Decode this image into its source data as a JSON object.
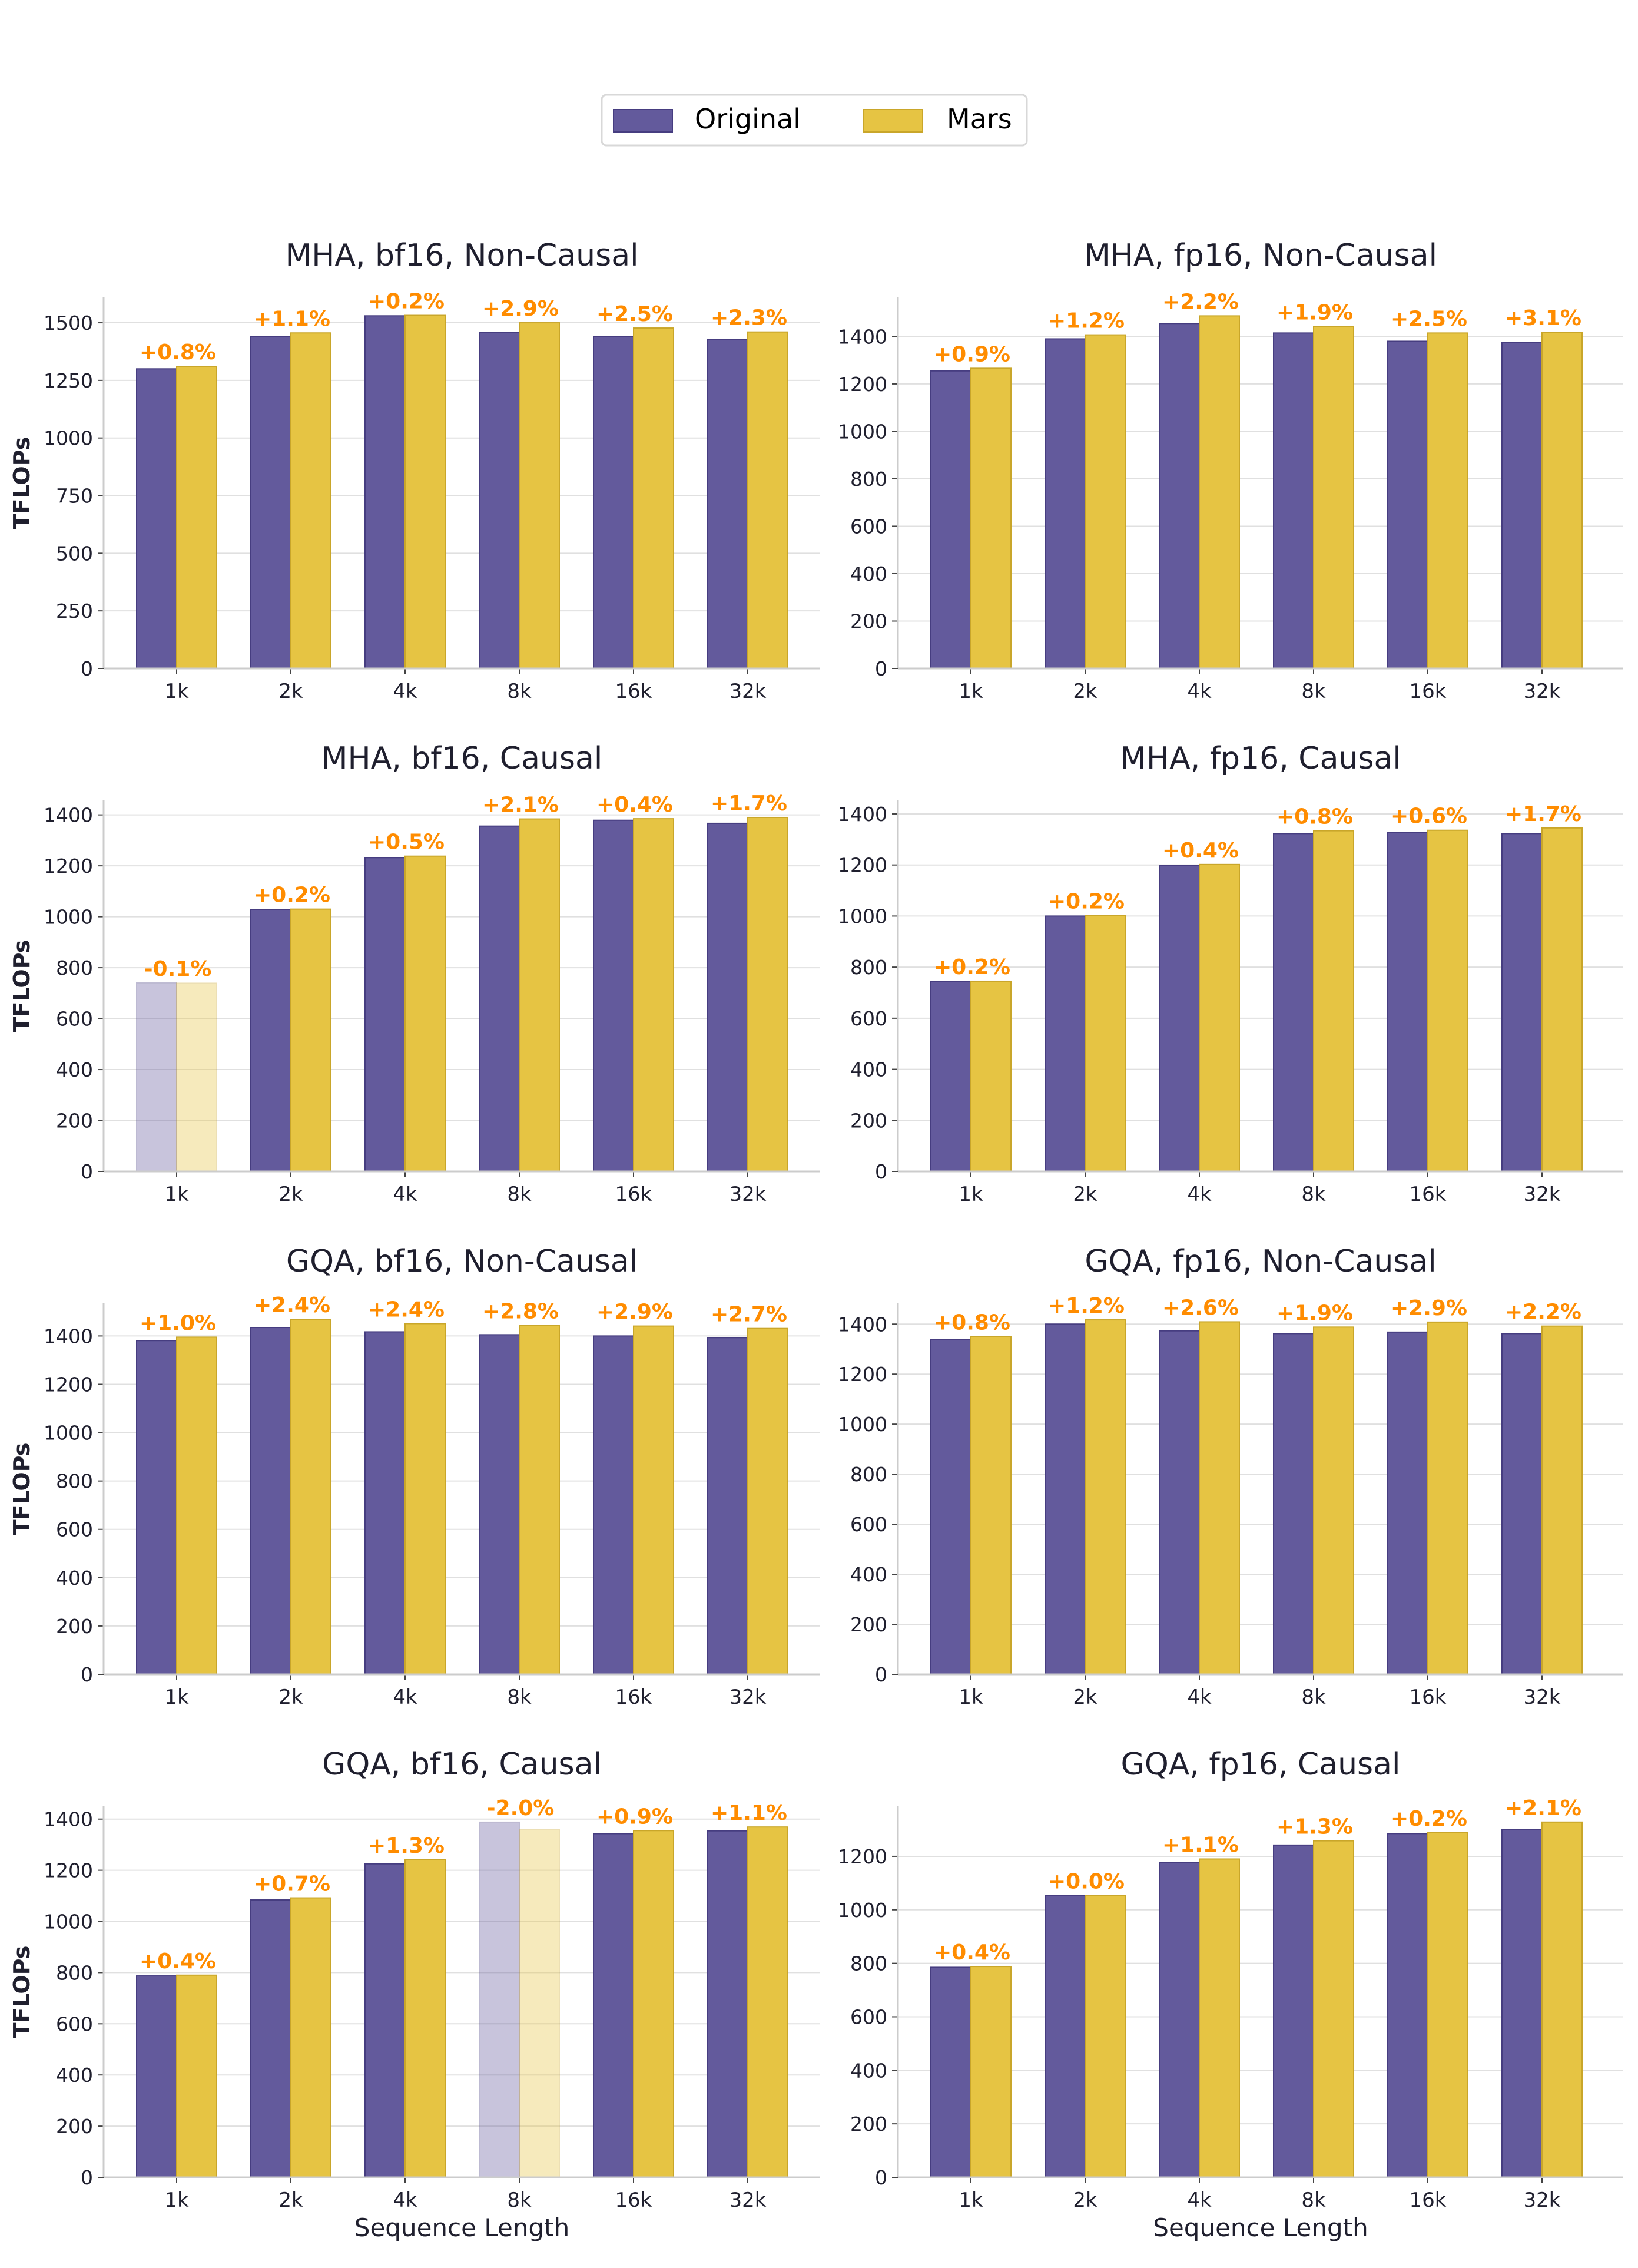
{
  "legend": {
    "original": "Original",
    "mars": "Mars"
  },
  "colors": {
    "original": "#635a9c",
    "original_edge": "#463d80",
    "mars": "#e6c443",
    "mars_edge": "#c9a62a",
    "annotation": "#ff8c00",
    "text": "#1f1f2e",
    "grid": "#e0e0e0"
  },
  "chart_data": [
    {
      "type": "bar",
      "title": "MHA, bf16, Non-Causal",
      "ylabel": "TFLOPs",
      "xlabel": "",
      "categories": [
        "1k",
        "2k",
        "4k",
        "8k",
        "16k",
        "32k"
      ],
      "series": [
        {
          "name": "Original",
          "values": [
            1300,
            1440,
            1530,
            1458,
            1440,
            1427
          ]
        },
        {
          "name": "Mars",
          "values": [
            1311,
            1456,
            1532,
            1500,
            1477,
            1460
          ]
        }
      ],
      "annotations": [
        "+0.8%",
        "+1.1%",
        "+0.2%",
        "+2.9%",
        "+2.5%",
        "+2.3%"
      ],
      "faded": [],
      "ylim": [
        0,
        1610
      ],
      "yticks": [
        0,
        250,
        500,
        750,
        1000,
        1250,
        1500
      ]
    },
    {
      "type": "bar",
      "title": "MHA, fp16, Non-Causal",
      "ylabel": "",
      "xlabel": "",
      "categories": [
        "1k",
        "2k",
        "4k",
        "8k",
        "16k",
        "32k"
      ],
      "series": [
        {
          "name": "Original",
          "values": [
            1255,
            1390,
            1455,
            1415,
            1380,
            1375
          ]
        },
        {
          "name": "Mars",
          "values": [
            1266,
            1407,
            1487,
            1442,
            1415,
            1418
          ]
        }
      ],
      "annotations": [
        "+0.9%",
        "+1.2%",
        "+2.2%",
        "+1.9%",
        "+2.5%",
        "+3.1%"
      ],
      "faded": [],
      "ylim": [
        0,
        1565
      ],
      "yticks": [
        0,
        200,
        400,
        600,
        800,
        1000,
        1200,
        1400
      ]
    },
    {
      "type": "bar",
      "title": "MHA, bf16, Causal",
      "ylabel": "TFLOPs",
      "xlabel": "",
      "categories": [
        "1k",
        "2k",
        "4k",
        "8k",
        "16k",
        "32k"
      ],
      "series": [
        {
          "name": "Original",
          "values": [
            740,
            1028,
            1232,
            1356,
            1379,
            1367
          ]
        },
        {
          "name": "Mars",
          "values": [
            739,
            1030,
            1238,
            1384,
            1385,
            1390
          ]
        }
      ],
      "annotations": [
        "-0.1%",
        "+0.2%",
        "+0.5%",
        "+2.1%",
        "+0.4%",
        "+1.7%"
      ],
      "faded": [
        0
      ],
      "ylim": [
        0,
        1457
      ],
      "yticks": [
        0,
        200,
        400,
        600,
        800,
        1000,
        1200,
        1400
      ]
    },
    {
      "type": "bar",
      "title": "MHA, fp16, Causal",
      "ylabel": "",
      "xlabel": "",
      "categories": [
        "1k",
        "2k",
        "4k",
        "8k",
        "16k",
        "32k"
      ],
      "series": [
        {
          "name": "Original",
          "values": [
            743,
            1000,
            1197,
            1323,
            1328,
            1323
          ]
        },
        {
          "name": "Mars",
          "values": [
            745,
            1002,
            1202,
            1334,
            1336,
            1345
          ]
        }
      ],
      "annotations": [
        "+0.2%",
        "+0.2%",
        "+0.4%",
        "+0.8%",
        "+0.6%",
        "+1.7%"
      ],
      "faded": [],
      "ylim": [
        0,
        1453
      ],
      "yticks": [
        0,
        200,
        400,
        600,
        800,
        1000,
        1200,
        1400
      ]
    },
    {
      "type": "bar",
      "title": "GQA, bf16, Non-Causal",
      "ylabel": "TFLOPs",
      "xlabel": "",
      "categories": [
        "1k",
        "2k",
        "4k",
        "8k",
        "16k",
        "32k"
      ],
      "series": [
        {
          "name": "Original",
          "values": [
            1381,
            1435,
            1417,
            1405,
            1400,
            1393
          ]
        },
        {
          "name": "Mars",
          "values": [
            1395,
            1469,
            1451,
            1444,
            1441,
            1431
          ]
        }
      ],
      "annotations": [
        "+1.0%",
        "+2.4%",
        "+2.4%",
        "+2.8%",
        "+2.9%",
        "+2.7%"
      ],
      "faded": [],
      "ylim": [
        0,
        1535
      ],
      "yticks": [
        0,
        200,
        400,
        600,
        800,
        1000,
        1200,
        1400
      ]
    },
    {
      "type": "bar",
      "title": "GQA, fp16, Non-Causal",
      "ylabel": "",
      "xlabel": "",
      "categories": [
        "1k",
        "2k",
        "4k",
        "8k",
        "16k",
        "32k"
      ],
      "series": [
        {
          "name": "Original",
          "values": [
            1339,
            1400,
            1373,
            1362,
            1368,
            1362
          ]
        },
        {
          "name": "Mars",
          "values": [
            1350,
            1417,
            1409,
            1388,
            1408,
            1392
          ]
        }
      ],
      "annotations": [
        "+0.8%",
        "+1.2%",
        "+2.6%",
        "+1.9%",
        "+2.9%",
        "+2.2%"
      ],
      "faded": [],
      "ylim": [
        0,
        1483
      ],
      "yticks": [
        0,
        200,
        400,
        600,
        800,
        1000,
        1200,
        1400
      ]
    },
    {
      "type": "bar",
      "title": "GQA, bf16, Causal",
      "ylabel": "TFLOPs",
      "xlabel": "Sequence Length",
      "categories": [
        "1k",
        "2k",
        "4k",
        "8k",
        "16k",
        "32k"
      ],
      "series": [
        {
          "name": "Original",
          "values": [
            787,
            1084,
            1225,
            1388,
            1343,
            1354
          ]
        },
        {
          "name": "Mars",
          "values": [
            790,
            1092,
            1241,
            1360,
            1355,
            1369
          ]
        }
      ],
      "annotations": [
        "+0.4%",
        "+0.7%",
        "+1.3%",
        "-2.0%",
        "+0.9%",
        "+1.1%"
      ],
      "faded": [
        3
      ],
      "ylim": [
        0,
        1450
      ],
      "yticks": [
        0,
        200,
        400,
        600,
        800,
        1000,
        1200,
        1400
      ]
    },
    {
      "type": "bar",
      "title": "GQA, fp16, Causal",
      "ylabel": "",
      "xlabel": "Sequence Length",
      "categories": [
        "1k",
        "2k",
        "4k",
        "8k",
        "16k",
        "32k"
      ],
      "series": [
        {
          "name": "Original",
          "values": [
            785,
            1054,
            1177,
            1242,
            1285,
            1301
          ]
        },
        {
          "name": "Mars",
          "values": [
            788,
            1054,
            1190,
            1258,
            1288,
            1328
          ]
        }
      ],
      "annotations": [
        "+0.4%",
        "+0.0%",
        "+1.1%",
        "+1.3%",
        "+0.2%",
        "+2.1%"
      ],
      "faded": [],
      "ylim": [
        0,
        1387
      ],
      "yticks": [
        0,
        200,
        400,
        600,
        800,
        1000,
        1200
      ]
    }
  ]
}
